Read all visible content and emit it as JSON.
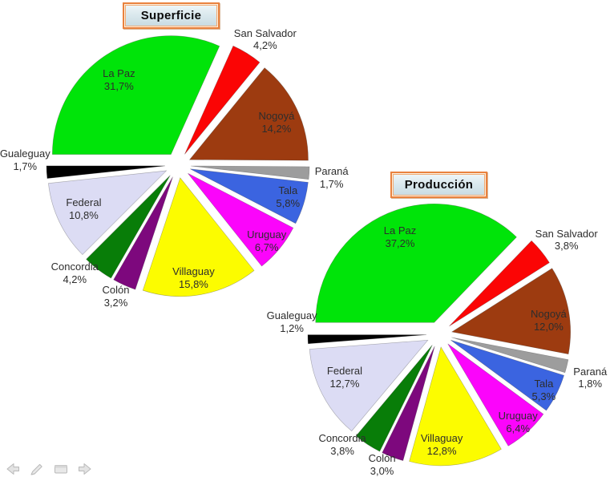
{
  "chart_data": [
    {
      "type": "pie",
      "title": "Superficie",
      "categories": [
        "La Paz",
        "San Salvador",
        "Nogoyá",
        "Paraná",
        "Tala",
        "Uruguay",
        "Villaguay",
        "Colón",
        "Concordia",
        "Federal",
        "Gualeguay"
      ],
      "values": [
        31.7,
        4.2,
        14.2,
        1.7,
        5.8,
        6.7,
        15.8,
        3.2,
        4.2,
        10.8,
        1.7
      ],
      "value_labels": [
        "31,7%",
        "4,2%",
        "14,2%",
        "1,7%",
        "5,8%",
        "6,7%",
        "15,8%",
        "3,2%",
        "4,2%",
        "10,8%",
        "1,7%"
      ],
      "colors": [
        "#00e409",
        "#fb0505",
        "#9d3b10",
        "#9d9d9d",
        "#3b64e0",
        "#fb05fb",
        "#fcfc00",
        "#7d087d",
        "#087d08",
        "#dcdcf4",
        "#000000"
      ],
      "start_angle": 180,
      "direction": "clockwise",
      "exploded": true,
      "legend": "none",
      "label_format": "category + percent (comma decimal)"
    },
    {
      "type": "pie",
      "title": "Producción",
      "categories": [
        "La Paz",
        "San Salvador",
        "Nogoyá",
        "Paraná",
        "Tala",
        "Uruguay",
        "Villaguay",
        "Colón",
        "Concordia",
        "Federal",
        "Gualeguay"
      ],
      "values": [
        37.2,
        3.8,
        12.0,
        1.8,
        5.3,
        6.4,
        12.8,
        3.0,
        3.8,
        12.7,
        1.2
      ],
      "value_labels": [
        "37,2%",
        "3,8%",
        "12,0%",
        "1,8%",
        "5,3%",
        "6,4%",
        "12,8%",
        "3,0%",
        "3,8%",
        "12,7%",
        "1,2%"
      ],
      "colors": [
        "#00e409",
        "#fb0505",
        "#9d3b10",
        "#9d9d9d",
        "#3b64e0",
        "#fb05fb",
        "#fcfc00",
        "#7d087d",
        "#087d08",
        "#dcdcf4",
        "#000000"
      ],
      "start_angle": 180,
      "direction": "clockwise",
      "exploded": true,
      "legend": "none",
      "label_format": "category + percent (comma decimal)"
    }
  ],
  "toolbar": {
    "buttons": [
      {
        "name": "previous-slide",
        "icon": "arrow-left-icon"
      },
      {
        "name": "pen-tool",
        "icon": "pen-icon"
      },
      {
        "name": "slide-menu",
        "icon": "slide-icon"
      },
      {
        "name": "next-slide",
        "icon": "arrow-right-icon"
      }
    ]
  },
  "style": {
    "background": "#ffffff",
    "label_text_color": "#2d2d2d",
    "title_border_color": "#e9823e",
    "title_panel_color": "#dbe9ee",
    "toolbar_icon_color": "#dedede"
  }
}
